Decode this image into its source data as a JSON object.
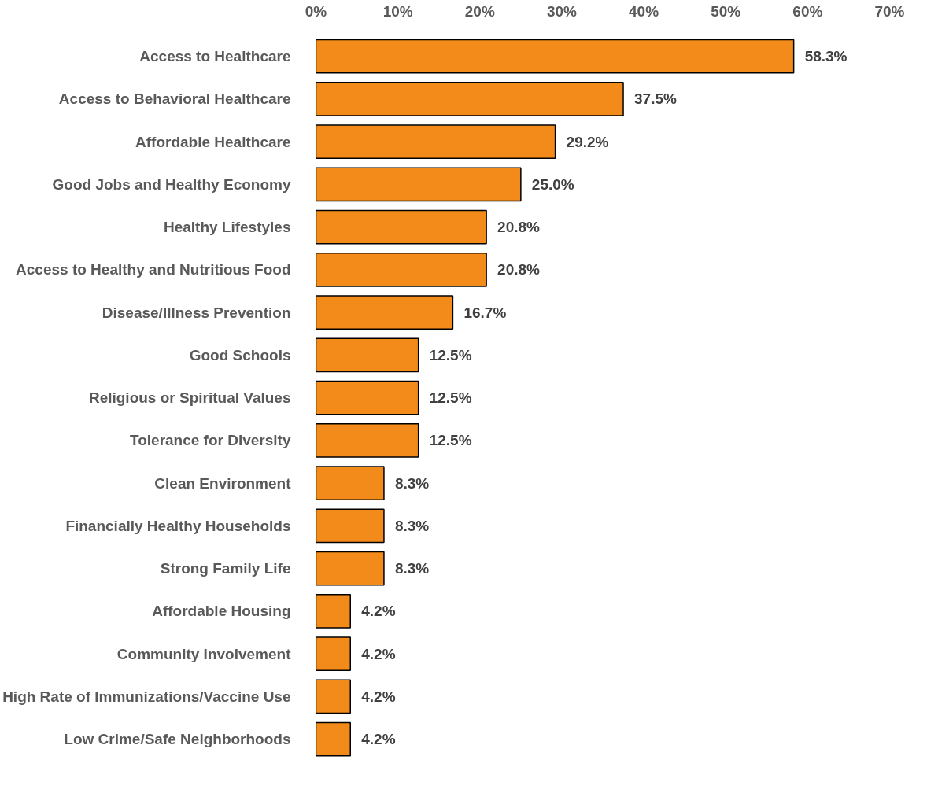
{
  "chart_data": {
    "type": "bar",
    "orientation": "horizontal",
    "categories": [
      "Access to Healthcare",
      "Access to Behavioral Healthcare",
      "Affordable Healthcare",
      "Good Jobs and Healthy Economy",
      "Healthy Lifestyles",
      "Access to Healthy and Nutritious Food",
      "Disease/Illness Prevention",
      "Good Schools",
      "Religious or Spiritual Values",
      "Tolerance for Diversity",
      "Clean Environment",
      "Financially Healthy Households",
      "Strong Family Life",
      "Affordable Housing",
      "Community Involvement",
      "High Rate of Immunizations/Vaccine Use",
      "Low Crime/Safe Neighborhoods"
    ],
    "values": [
      58.3,
      37.5,
      29.2,
      25.0,
      20.8,
      20.8,
      16.7,
      12.5,
      12.5,
      12.5,
      8.3,
      8.3,
      8.3,
      4.2,
      4.2,
      4.2,
      4.2
    ],
    "value_labels": [
      "58.3%",
      "37.5%",
      "29.2%",
      "25.0%",
      "20.8%",
      "20.8%",
      "16.7%",
      "12.5%",
      "12.5%",
      "12.5%",
      "8.3%",
      "8.3%",
      "8.3%",
      "4.2%",
      "4.2%",
      "4.2%",
      "4.2%"
    ],
    "color": "#f38b1b",
    "xlim": [
      0,
      70
    ],
    "xticks": [
      {
        "value": 0,
        "label": "0%"
      },
      {
        "value": 10,
        "label": "10%"
      },
      {
        "value": 20,
        "label": "20%"
      },
      {
        "value": 30,
        "label": "30%"
      },
      {
        "value": 40,
        "label": "40%"
      },
      {
        "value": 50,
        "label": "50%"
      },
      {
        "value": 60,
        "label": "60%"
      },
      {
        "value": 70,
        "label": "70%"
      }
    ],
    "grid": false
  }
}
